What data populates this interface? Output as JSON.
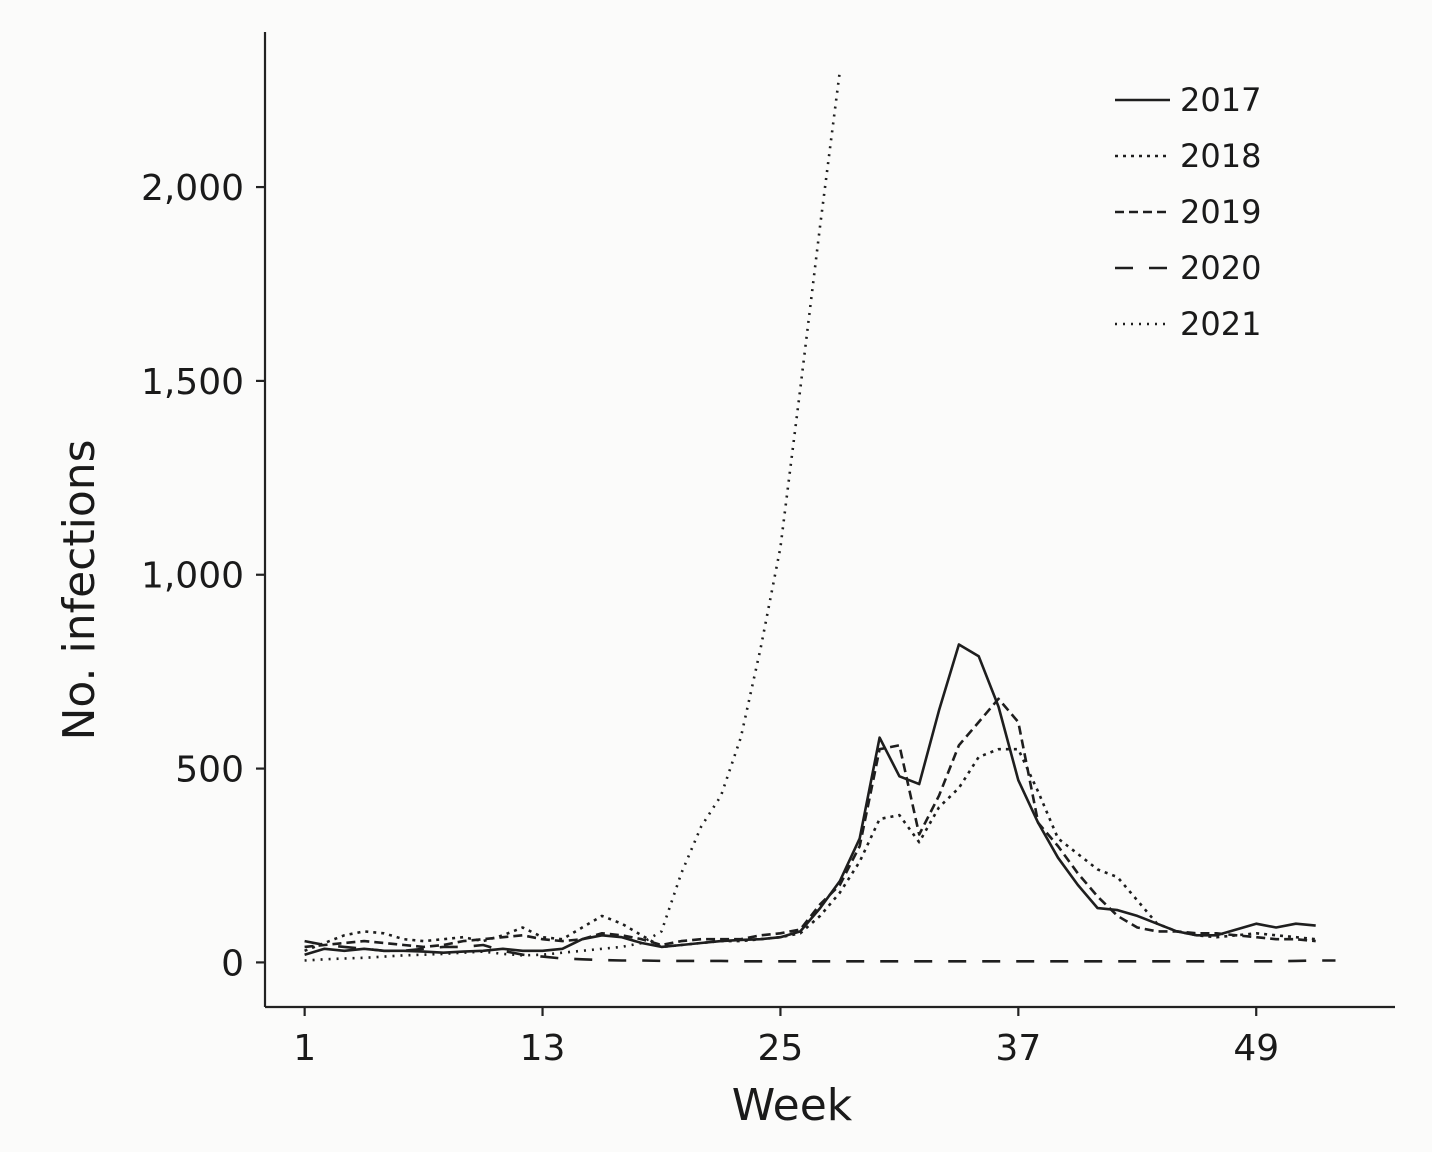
{
  "chart_data": {
    "type": "line",
    "xlabel": "Week",
    "ylabel": "No. infections",
    "xlim": [
      -1,
      56
    ],
    "ylim": [
      -115,
      2400
    ],
    "xticks": [
      1,
      13,
      25,
      37,
      49
    ],
    "yticks": [
      0,
      500,
      1000,
      1500,
      2000
    ],
    "xtick_labels": [
      "1",
      "13",
      "25",
      "37",
      "49"
    ],
    "ytick_labels": [
      "0",
      "500",
      "1,000",
      "1,500",
      "2,000"
    ],
    "grid": false,
    "legend_position": "top-right",
    "series": [
      {
        "name": "2017",
        "dash": "solid",
        "x": [
          1,
          2,
          3,
          4,
          5,
          6,
          7,
          8,
          9,
          10,
          11,
          12,
          13,
          14,
          15,
          16,
          17,
          18,
          19,
          20,
          21,
          22,
          23,
          24,
          25,
          26,
          27,
          28,
          29,
          30,
          31,
          32,
          33,
          34,
          35,
          36,
          37,
          38,
          39,
          40,
          41,
          42,
          43,
          44,
          45,
          46,
          47,
          48,
          49,
          50,
          51,
          52
        ],
        "y": [
          20,
          35,
          30,
          35,
          30,
          30,
          28,
          25,
          28,
          30,
          35,
          30,
          30,
          35,
          60,
          70,
          65,
          50,
          40,
          45,
          50,
          55,
          58,
          60,
          65,
          80,
          140,
          210,
          320,
          580,
          480,
          460,
          650,
          820,
          790,
          660,
          470,
          360,
          270,
          200,
          140,
          135,
          120,
          100,
          80,
          70,
          70,
          85,
          100,
          90,
          100,
          95
        ]
      },
      {
        "name": "2018",
        "dash": "3 5",
        "x": [
          1,
          2,
          3,
          4,
          5,
          6,
          7,
          8,
          9,
          10,
          11,
          12,
          13,
          14,
          15,
          16,
          17,
          18,
          19,
          20,
          21,
          22,
          23,
          24,
          25,
          26,
          27,
          28,
          29,
          30,
          31,
          32,
          33,
          34,
          35,
          36,
          37,
          38,
          39,
          40,
          41,
          42,
          43,
          44,
          45,
          46,
          47,
          48,
          49,
          50,
          51,
          52
        ],
        "y": [
          30,
          50,
          70,
          80,
          75,
          60,
          55,
          60,
          65,
          55,
          70,
          90,
          65,
          60,
          90,
          120,
          100,
          70,
          40,
          45,
          50,
          55,
          55,
          60,
          65,
          75,
          120,
          180,
          260,
          370,
          380,
          310,
          400,
          450,
          530,
          550,
          550,
          440,
          320,
          280,
          240,
          220,
          160,
          100,
          80,
          70,
          65,
          70,
          75,
          70,
          65,
          60
        ]
      },
      {
        "name": "2019",
        "dash": "9 5",
        "x": [
          1,
          2,
          3,
          4,
          5,
          6,
          7,
          8,
          9,
          10,
          11,
          12,
          13,
          14,
          15,
          16,
          17,
          18,
          19,
          20,
          21,
          22,
          23,
          24,
          25,
          26,
          27,
          28,
          29,
          30,
          31,
          32,
          33,
          34,
          35,
          36,
          37,
          38,
          39,
          40,
          41,
          42,
          43,
          44,
          45,
          46,
          47,
          48,
          49,
          50,
          51,
          52
        ],
        "y": [
          40,
          45,
          50,
          55,
          50,
          45,
          40,
          45,
          55,
          60,
          65,
          70,
          60,
          55,
          60,
          75,
          70,
          60,
          45,
          55,
          60,
          60,
          60,
          70,
          75,
          85,
          150,
          200,
          300,
          550,
          560,
          330,
          430,
          560,
          620,
          680,
          620,
          360,
          300,
          230,
          170,
          120,
          90,
          80,
          80,
          75,
          75,
          70,
          65,
          60,
          60,
          55
        ]
      },
      {
        "name": "2020",
        "dash": "18 16",
        "x": [
          1,
          2,
          3,
          4,
          5,
          6,
          7,
          8,
          9,
          10,
          11,
          12,
          13,
          14,
          15,
          16,
          17,
          18,
          19,
          20,
          21,
          22,
          23,
          24,
          25,
          26,
          27,
          28,
          29,
          30,
          31,
          32,
          33,
          34,
          35,
          36,
          37,
          38,
          39,
          40,
          41,
          42,
          43,
          44,
          45,
          46,
          47,
          48,
          49,
          50,
          51,
          52,
          53
        ],
        "y": [
          55,
          45,
          40,
          35,
          30,
          30,
          35,
          40,
          40,
          45,
          30,
          20,
          15,
          10,
          8,
          6,
          5,
          5,
          4,
          4,
          4,
          4,
          3,
          3,
          3,
          3,
          3,
          3,
          3,
          3,
          3,
          3,
          3,
          3,
          3,
          3,
          3,
          3,
          3,
          3,
          3,
          3,
          3,
          3,
          3,
          3,
          3,
          3,
          3,
          3,
          4,
          5,
          5
        ]
      },
      {
        "name": "2021",
        "dash": "2 6",
        "x": [
          1,
          2,
          3,
          4,
          5,
          6,
          7,
          8,
          9,
          10,
          11,
          12,
          13,
          14,
          15,
          16,
          17,
          18,
          19,
          20,
          21,
          22,
          23,
          24,
          25,
          26,
          27,
          28
        ],
        "y": [
          5,
          8,
          10,
          12,
          15,
          18,
          20,
          22,
          25,
          28,
          22,
          18,
          20,
          25,
          30,
          35,
          40,
          50,
          80,
          230,
          350,
          430,
          580,
          810,
          1070,
          1480,
          1900,
          2300
        ]
      }
    ]
  },
  "legend": [
    {
      "label": "2017",
      "dash": "solid"
    },
    {
      "label": "2018",
      "dash": "3 5"
    },
    {
      "label": "2019",
      "dash": "9 5"
    },
    {
      "label": "2020",
      "dash": "18 16"
    },
    {
      "label": "2021",
      "dash": "2 6"
    }
  ]
}
